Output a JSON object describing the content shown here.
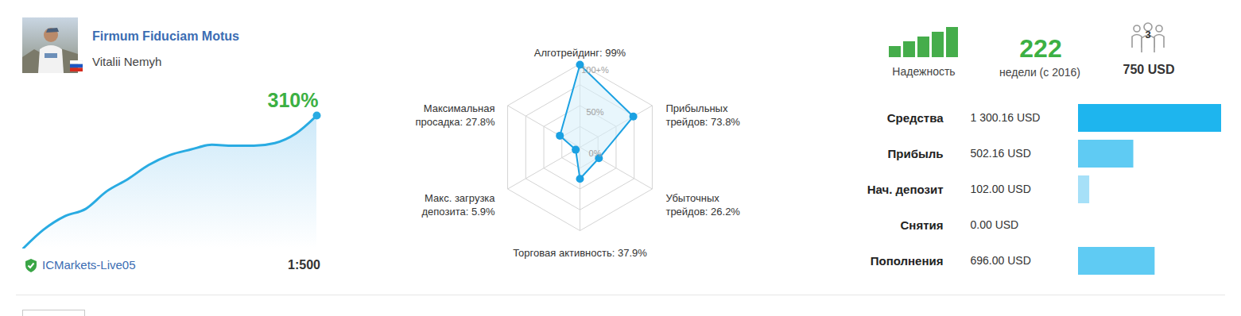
{
  "header": {
    "title": "Firmum Fiduciam Motus",
    "author": "Vitalii Nemyh",
    "reliability_label": "Надежность",
    "reliability_level": 5,
    "weeks": 222,
    "weeks_label": "недели (с 2016)",
    "subscribers": 3,
    "price": "750 USD",
    "broker": "ICMarkets-Live05",
    "leverage": "1:500"
  },
  "chart_data": [
    {
      "type": "area",
      "annotation": "310%",
      "x": [
        0,
        1,
        2,
        3,
        4,
        5,
        6,
        7,
        8,
        9,
        10,
        11,
        12,
        13,
        14
      ],
      "values": [
        0,
        45,
        76,
        93,
        134,
        162,
        195,
        218,
        231,
        242,
        240,
        240,
        246,
        268,
        310
      ],
      "xlim": [
        0,
        14
      ],
      "ylim": [
        0,
        310
      ],
      "tick_labels": false,
      "color": "#29abe2"
    },
    {
      "type": "radar",
      "axes": [
        {
          "label_lines": [
            "Алготрейдинг: 99%"
          ],
          "value": 99
        },
        {
          "label_lines": [
            "Прибыльных",
            "трейдов: 73.8%"
          ],
          "value": 73.8
        },
        {
          "label_lines": [
            "Убыточных",
            "трейдов: 26.2%"
          ],
          "value": 26.2
        },
        {
          "label_lines": [
            "Торговая активность: 37.9%"
          ],
          "value": 37.9
        },
        {
          "label_lines": [
            "Макс. загрузка",
            "депозита: 5.9%"
          ],
          "value": 5.9
        },
        {
          "label_lines": [
            "Максимальная",
            "просадка: 27.8%"
          ],
          "value": 27.8
        }
      ],
      "rlim": [
        0,
        100
      ],
      "rticks": [
        {
          "value": 0,
          "label": "0%"
        },
        {
          "value": 50,
          "label": "50%"
        },
        {
          "value": 100,
          "label": "100+%"
        }
      ],
      "rings": [
        25,
        50,
        75,
        100
      ],
      "color": "#1ba1e2"
    },
    {
      "type": "bar",
      "orientation": "horizontal",
      "categories": [
        "Средства",
        "Прибыль",
        "Нач. депозит",
        "Снятия",
        "Пополнения"
      ],
      "values": [
        1300.16,
        502.16,
        102.0,
        0.0,
        696.0
      ],
      "value_labels": [
        "1 300.16 USD",
        "502.16 USD",
        "102.00 USD",
        "0.00 USD",
        "696.00 USD"
      ],
      "data_labels": true,
      "colors": [
        "#1eb5ee",
        "#5fcbf3",
        "#a6e0f8",
        "#d3eefa",
        "#5fcbf3"
      ],
      "xlim": [
        0,
        1300.16
      ],
      "tick_labels": false
    }
  ]
}
